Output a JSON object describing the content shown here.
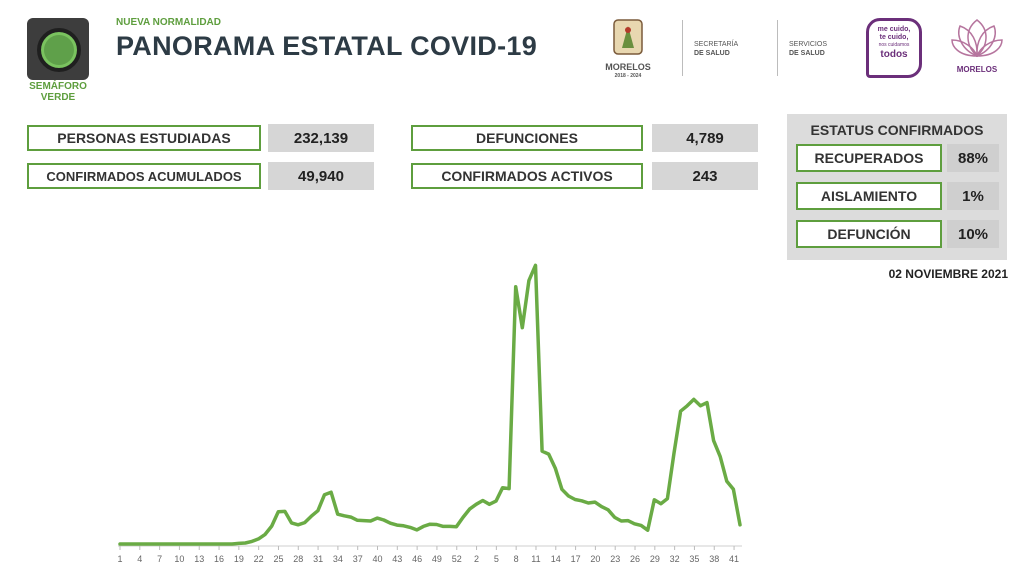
{
  "header": {
    "semaforo": "SEMÁFORO VERDE",
    "subtitle": "NUEVA NORMALIDAD",
    "title": "PANORAMA ESTATAL COVID-19",
    "logo_morelos": "MORELOS",
    "logo_morelos_years": "2018 - 2024",
    "logo_secretaria_1": "SECRETARÍA",
    "logo_secretaria_2": "DE SALUD",
    "logo_servicios_1": "SERVICIOS",
    "logo_servicios_2": "DE SALUD",
    "logo_mecuido_1": "me cuido,",
    "logo_mecuido_2": "te cuido,",
    "logo_mecuido_3": "nos cuidamos",
    "logo_mecuido_4": "todos",
    "logo_morelos2": "MORELOS"
  },
  "stats": {
    "personas_label": "PERSONAS ESTUDIADAS",
    "personas_value": "232,139",
    "confirmados_label": "CONFIRMADOS ACUMULADOS",
    "confirmados_value": "49,940",
    "defunciones_label": "DEFUNCIONES",
    "defunciones_value": "4,789",
    "activos_label": "CONFIRMADOS ACTIVOS",
    "activos_value": "243"
  },
  "status": {
    "title": "ESTATUS CONFIRMADOS",
    "items": [
      {
        "label": "RECUPERADOS",
        "value": "88%"
      },
      {
        "label": "AISLAMIENTO",
        "value": "1%"
      },
      {
        "label": "DEFUNCIÓN",
        "value": "10%"
      }
    ]
  },
  "date": "02 NOVIEMBRE 2021",
  "colors": {
    "accent": "#5e9e3e",
    "title": "#2d3b45",
    "panel": "#dcdcdc"
  },
  "chart_data": {
    "type": "line",
    "title": "",
    "xlabel": "",
    "ylabel": "",
    "x_tick_labels": [
      "1",
      "4",
      "7",
      "10",
      "13",
      "16",
      "19",
      "22",
      "25",
      "28",
      "31",
      "34",
      "37",
      "40",
      "43",
      "46",
      "49",
      "52",
      "2",
      "5",
      "8",
      "11",
      "14",
      "17",
      "20",
      "23",
      "26",
      "29",
      "32",
      "35",
      "38",
      "41"
    ],
    "series": [
      {
        "color": "#6aab45",
        "values": [
          0,
          0,
          0,
          0,
          0,
          0,
          0,
          0,
          0,
          0,
          0,
          0,
          0,
          0,
          0,
          0,
          0,
          0,
          0.2,
          0.3,
          0.8,
          1.6,
          3,
          5.6,
          10.1,
          10.2,
          6.6,
          6,
          6.7,
          8.7,
          10.4,
          15.4,
          16.2,
          9.3,
          8.8,
          8.4,
          7.4,
          7.3,
          7.2,
          8.1,
          7.5,
          6.5,
          5.9,
          5.7,
          5.2,
          4.4,
          5.5,
          6.2,
          6.1,
          5.5,
          5.5,
          5.4,
          8.3,
          10.9,
          12.4,
          13.6,
          12.4,
          13.4,
          17.6,
          17.3,
          80.4,
          67.6,
          82.3,
          87.1,
          29,
          28.1,
          23.7,
          17.1,
          15,
          13.9,
          13.5,
          12.8,
          13.1,
          11.7,
          10.7,
          8.3,
          7.2,
          7.3,
          6.3,
          5.8,
          4.3,
          13.8,
          12.6,
          14.2,
          28.4,
          41.5,
          43.2,
          45.2,
          43.2,
          44.2,
          32.3,
          27.3,
          19.6,
          17.1,
          6
        ]
      }
    ],
    "ylim": [
      0,
      100
    ],
    "grid": false,
    "legend": "none"
  }
}
